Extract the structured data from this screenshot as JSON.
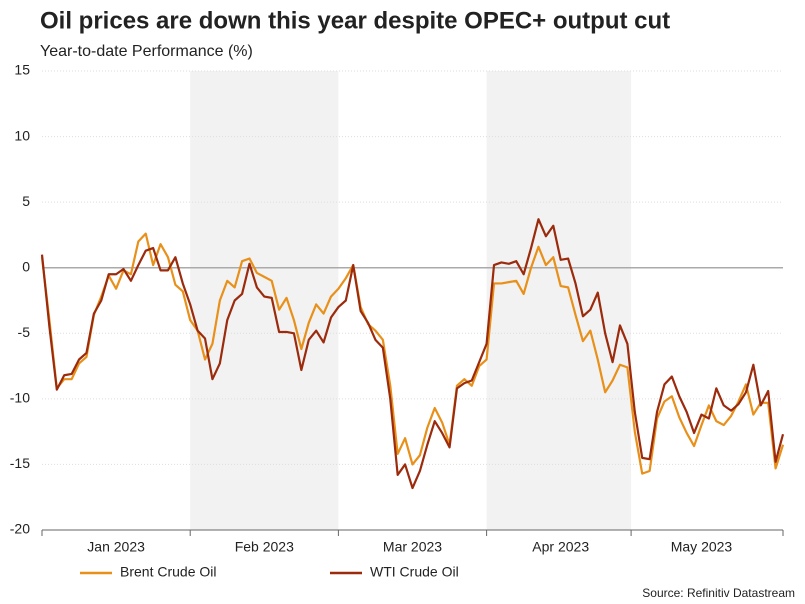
{
  "chart_data": {
    "type": "line",
    "title": "Oil prices are down this year despite OPEC+ output cut",
    "subtitle": "Year-to-date Performance (%)",
    "source": "Source: Refinitiv Datastream",
    "categories": [
      null,
      null,
      null,
      null,
      null,
      null,
      null,
      null,
      null,
      null,
      "Jan 2023",
      null,
      null,
      null,
      null,
      null,
      null,
      null,
      null,
      null,
      null,
      null,
      null,
      null,
      null,
      null,
      null,
      null,
      null,
      null,
      "Feb 2023",
      null,
      null,
      null,
      null,
      null,
      null,
      null,
      null,
      null,
      null,
      null,
      null,
      null,
      null,
      null,
      null,
      null,
      null,
      null,
      "Mar 2023",
      null,
      null,
      null,
      null,
      null,
      null,
      null,
      null,
      null,
      null,
      null,
      null,
      null,
      null,
      null,
      null,
      null,
      null,
      null,
      "Apr 2023",
      null,
      null,
      null,
      null,
      null,
      null,
      null,
      null,
      null,
      null,
      null,
      null,
      null,
      null,
      null,
      null,
      null,
      null,
      "May 2023",
      null,
      null,
      null,
      null,
      null,
      null,
      null,
      null,
      null,
      null,
      null
    ],
    "series": [
      {
        "name": "Brent Crude Oil",
        "color": "#e8901a",
        "values": [
          0.8,
          -4,
          -9.2,
          -8.5,
          -8.5,
          -7.3,
          -6.8,
          -3.6,
          -2.2,
          -0.6,
          -1.6,
          -0.2,
          -0.5,
          2.0,
          2.6,
          0.2,
          1.8,
          0.8,
          -1.3,
          -1.8,
          -4,
          -4.8,
          -7.0,
          -5.8,
          -2.5,
          -1.0,
          -1.5,
          0.5,
          0.7,
          -0.4,
          -0.7,
          -1.0,
          -3.2,
          -2.3,
          -4.0,
          -6.2,
          -4.2,
          -2.8,
          -3.5,
          -2.2,
          -1.6,
          -0.8,
          0.2,
          -3,
          -4.3,
          -4.8,
          -5.5,
          -9,
          -14.2,
          -13,
          -15,
          -14.3,
          -12.2,
          -10.7,
          -11.8,
          -13.5,
          -9.0,
          -8.5,
          -9.0,
          -7.5,
          -7.0,
          -1.2,
          -1.2,
          -1.1,
          -1.0,
          -2.0,
          0.0,
          1.6,
          0.2,
          0.8,
          -1.4,
          -1.5,
          -3.6,
          -5.6,
          -4.8,
          -7.0,
          -9.5,
          -8.6,
          -7.4,
          -7.6,
          -12.5,
          -15.7,
          -15.5,
          -11.5,
          -10.2,
          -9.8,
          -11.4,
          -12.6,
          -13.6,
          -12.0,
          -10.5,
          -11.7,
          -12.0,
          -11.3,
          -10.2,
          -8.9,
          -11.2,
          -10.3,
          -10.3,
          -15.3,
          -13.5
        ]
      },
      {
        "name": "WTI Crude Oil",
        "color": "#9b2b0c",
        "values": [
          1.0,
          -4.5,
          -9.3,
          -8.2,
          -8.1,
          -7.0,
          -6.5,
          -3.5,
          -2.5,
          -0.5,
          -0.5,
          -0.1,
          -1.0,
          0.2,
          1.3,
          1.5,
          -0.2,
          -0.2,
          0.8,
          -1.2,
          -2.8,
          -4.8,
          -5.4,
          -8.5,
          -7.3,
          -4.0,
          -2.5,
          -2.0,
          0.3,
          -1.5,
          -2.2,
          -2.3,
          -4.9,
          -4.9,
          -5.0,
          -7.8,
          -5.5,
          -4.8,
          -5.7,
          -3.8,
          -3.0,
          -2.5,
          0.2,
          -3.3,
          -4.2,
          -5.5,
          -6.1,
          -10,
          -15.8,
          -15,
          -16.8,
          -15.5,
          -13.5,
          -11.7,
          -12.6,
          -13.7,
          -9.2,
          -8.8,
          -8.6,
          -7.2,
          -5.8,
          0.2,
          0.4,
          0.3,
          0.5,
          -0.5,
          1.5,
          3.7,
          2.4,
          3.2,
          0.6,
          0.7,
          -1.2,
          -3.7,
          -3.2,
          -1.9,
          -5.0,
          -7.2,
          -4.4,
          -5.8,
          -11,
          -14.5,
          -14.6,
          -11.0,
          -8.9,
          -8.3,
          -9.8,
          -11.0,
          -12.6,
          -11.2,
          -11.5,
          -9.2,
          -10.5,
          -10.9,
          -10.4,
          -9.5,
          -7.4,
          -10.5,
          -9.4,
          -14.8,
          -12.7
        ]
      }
    ],
    "ylim": [
      -20,
      15
    ],
    "yticks": [
      15,
      10,
      5,
      0,
      -5,
      -10,
      -15,
      -20
    ],
    "grid": true,
    "legend": "bottom"
  }
}
